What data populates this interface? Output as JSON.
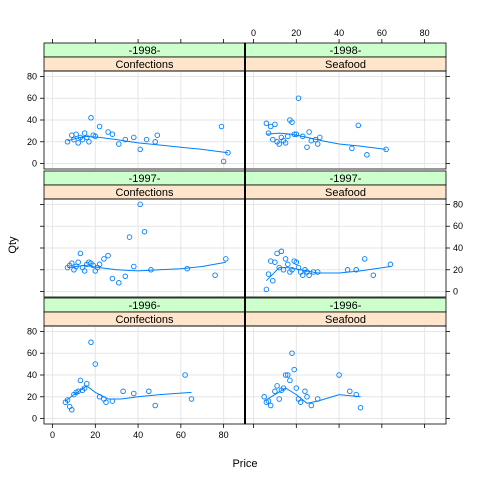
{
  "chart_data": {
    "type": "scatter",
    "xlabel": "Price",
    "ylabel": "Qty",
    "xlim": [
      -4,
      90
    ],
    "ylim": [
      -5,
      85
    ],
    "xticks": [
      0,
      20,
      40,
      60,
      80
    ],
    "yticks": [
      0,
      20,
      40,
      60,
      80
    ],
    "grid": true,
    "colors": {
      "points": "#0080ff",
      "line": "#0080ff",
      "strip_year": "#ccffcc",
      "strip_category": "#ffe5cc",
      "grid": "#e6e6e6"
    },
    "panels": [
      {
        "year": "-1998-",
        "category": "Confections",
        "row": 0,
        "col": 0,
        "points": [
          [
            7,
            20
          ],
          [
            9,
            26
          ],
          [
            10,
            22
          ],
          [
            11,
            27
          ],
          [
            12,
            19
          ],
          [
            13,
            24
          ],
          [
            14,
            22
          ],
          [
            15,
            28
          ],
          [
            16,
            24
          ],
          [
            17,
            20
          ],
          [
            18,
            42
          ],
          [
            19,
            26
          ],
          [
            20,
            25
          ],
          [
            22,
            34
          ],
          [
            26,
            29
          ],
          [
            28,
            27
          ],
          [
            31,
            18
          ],
          [
            34,
            22
          ],
          [
            38,
            24
          ],
          [
            41,
            13
          ],
          [
            44,
            22
          ],
          [
            48,
            20
          ],
          [
            49,
            26
          ],
          [
            79,
            34
          ],
          [
            80,
            2
          ],
          [
            82,
            10
          ]
        ],
        "smooth": [
          [
            7,
            21
          ],
          [
            15,
            25
          ],
          [
            22,
            24
          ],
          [
            30,
            22
          ],
          [
            40,
            19
          ],
          [
            50,
            17
          ],
          [
            60,
            15
          ],
          [
            70,
            13
          ],
          [
            82,
            10
          ]
        ]
      },
      {
        "year": "-1998-",
        "category": "Seafood",
        "row": 0,
        "col": 1,
        "points": [
          [
            6,
            37
          ],
          [
            7,
            28
          ],
          [
            8,
            34
          ],
          [
            9,
            22
          ],
          [
            10,
            36
          ],
          [
            11,
            20
          ],
          [
            12,
            18
          ],
          [
            13,
            24
          ],
          [
            14,
            21
          ],
          [
            15,
            19
          ],
          [
            16,
            25
          ],
          [
            17,
            40
          ],
          [
            18,
            38
          ],
          [
            19,
            27
          ],
          [
            20,
            27
          ],
          [
            21,
            60
          ],
          [
            23,
            25
          ],
          [
            25,
            15
          ],
          [
            26,
            29
          ],
          [
            27,
            21
          ],
          [
            29,
            22
          ],
          [
            30,
            18
          ],
          [
            31,
            24
          ],
          [
            46,
            14
          ],
          [
            49,
            35
          ],
          [
            53,
            8
          ],
          [
            62,
            13
          ]
        ],
        "smooth": [
          [
            6,
            27
          ],
          [
            12,
            28
          ],
          [
            18,
            27
          ],
          [
            25,
            24
          ],
          [
            32,
            21
          ],
          [
            40,
            18
          ],
          [
            50,
            16
          ],
          [
            62,
            13
          ]
        ]
      },
      {
        "year": "-1997-",
        "category": "Confections",
        "row": 1,
        "col": 0,
        "points": [
          [
            7,
            22
          ],
          [
            8,
            24
          ],
          [
            9,
            26
          ],
          [
            10,
            20
          ],
          [
            11,
            23
          ],
          [
            12,
            27
          ],
          [
            13,
            35
          ],
          [
            14,
            22
          ],
          [
            15,
            19
          ],
          [
            16,
            25
          ],
          [
            17,
            27
          ],
          [
            18,
            26
          ],
          [
            19,
            24
          ],
          [
            20,
            19
          ],
          [
            21,
            22
          ],
          [
            22,
            25
          ],
          [
            24,
            30
          ],
          [
            26,
            33
          ],
          [
            28,
            12
          ],
          [
            31,
            8
          ],
          [
            34,
            14
          ],
          [
            36,
            50
          ],
          [
            38,
            23
          ],
          [
            41,
            80
          ],
          [
            43,
            55
          ],
          [
            46,
            20
          ],
          [
            63,
            21
          ],
          [
            76,
            15
          ],
          [
            81,
            30
          ]
        ],
        "smooth": [
          [
            7,
            22
          ],
          [
            15,
            24
          ],
          [
            22,
            22
          ],
          [
            30,
            20
          ],
          [
            40,
            19
          ],
          [
            50,
            20
          ],
          [
            60,
            21
          ],
          [
            70,
            23
          ],
          [
            81,
            27
          ]
        ]
      },
      {
        "year": "-1997-",
        "category": "Seafood",
        "row": 1,
        "col": 1,
        "points": [
          [
            6,
            2
          ],
          [
            7,
            16
          ],
          [
            8,
            28
          ],
          [
            9,
            10
          ],
          [
            10,
            27
          ],
          [
            11,
            35
          ],
          [
            12,
            22
          ],
          [
            13,
            37
          ],
          [
            14,
            20
          ],
          [
            15,
            30
          ],
          [
            16,
            25
          ],
          [
            17,
            18
          ],
          [
            18,
            20
          ],
          [
            19,
            28
          ],
          [
            20,
            27
          ],
          [
            21,
            22
          ],
          [
            22,
            18
          ],
          [
            23,
            15
          ],
          [
            24,
            20
          ],
          [
            25,
            18
          ],
          [
            26,
            15
          ],
          [
            28,
            18
          ],
          [
            30,
            18
          ],
          [
            44,
            20
          ],
          [
            48,
            20
          ],
          [
            52,
            30
          ],
          [
            56,
            15
          ],
          [
            64,
            25
          ]
        ],
        "smooth": [
          [
            6,
            10
          ],
          [
            12,
            22
          ],
          [
            16,
            22
          ],
          [
            22,
            20
          ],
          [
            30,
            17
          ],
          [
            40,
            17
          ],
          [
            50,
            19
          ],
          [
            64,
            23
          ]
        ]
      },
      {
        "year": "-1996-",
        "category": "Confections",
        "row": 2,
        "col": 0,
        "points": [
          [
            6,
            15
          ],
          [
            7,
            17
          ],
          [
            8,
            11
          ],
          [
            9,
            8
          ],
          [
            10,
            22
          ],
          [
            11,
            24
          ],
          [
            12,
            25
          ],
          [
            13,
            35
          ],
          [
            14,
            26
          ],
          [
            15,
            28
          ],
          [
            16,
            32
          ],
          [
            18,
            70
          ],
          [
            20,
            50
          ],
          [
            22,
            20
          ],
          [
            24,
            18
          ],
          [
            25,
            15
          ],
          [
            28,
            16
          ],
          [
            33,
            25
          ],
          [
            38,
            23
          ],
          [
            45,
            25
          ],
          [
            48,
            12
          ],
          [
            62,
            40
          ],
          [
            65,
            18
          ]
        ],
        "smooth": [
          [
            6,
            16
          ],
          [
            10,
            22
          ],
          [
            16,
            30
          ],
          [
            20,
            24
          ],
          [
            26,
            18
          ],
          [
            32,
            18
          ],
          [
            40,
            20
          ],
          [
            50,
            22
          ],
          [
            65,
            24
          ]
        ]
      },
      {
        "year": "-1996-",
        "category": "Seafood",
        "row": 2,
        "col": 1,
        "points": [
          [
            5,
            20
          ],
          [
            6,
            15
          ],
          [
            7,
            16
          ],
          [
            8,
            12
          ],
          [
            10,
            25
          ],
          [
            11,
            30
          ],
          [
            12,
            18
          ],
          [
            13,
            26
          ],
          [
            14,
            28
          ],
          [
            15,
            40
          ],
          [
            16,
            40
          ],
          [
            17,
            35
          ],
          [
            18,
            60
          ],
          [
            19,
            45
          ],
          [
            20,
            28
          ],
          [
            21,
            18
          ],
          [
            22,
            15
          ],
          [
            24,
            25
          ],
          [
            25,
            20
          ],
          [
            27,
            12
          ],
          [
            30,
            18
          ],
          [
            40,
            40
          ],
          [
            45,
            25
          ],
          [
            48,
            22
          ],
          [
            50,
            10
          ]
        ],
        "smooth": [
          [
            5,
            16
          ],
          [
            10,
            22
          ],
          [
            15,
            28
          ],
          [
            20,
            22
          ],
          [
            25,
            14
          ],
          [
            30,
            16
          ],
          [
            40,
            22
          ],
          [
            50,
            20
          ]
        ]
      }
    ]
  }
}
